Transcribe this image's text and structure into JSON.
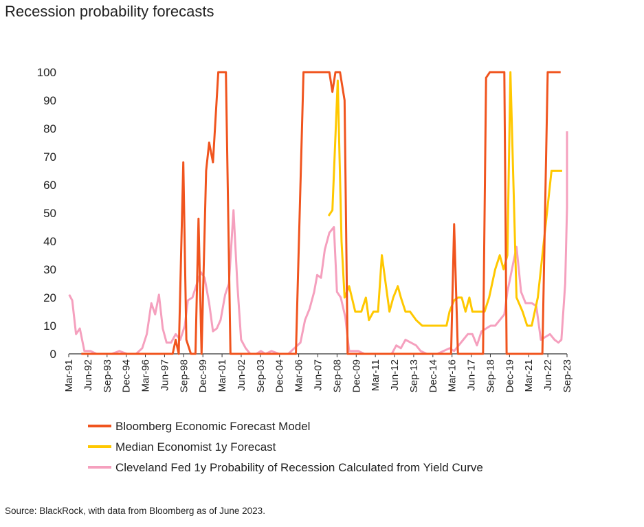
{
  "title": "Recession probability forecasts",
  "source": "Source: BlackRock, with data from Bloomberg as of June 2023.",
  "chart_data": {
    "type": "line",
    "title": "Recession probability forecasts",
    "xlabel": "",
    "ylabel": "",
    "ylim": [
      0,
      100
    ],
    "y_ticks": [
      0,
      10,
      20,
      30,
      40,
      50,
      60,
      70,
      80,
      90,
      100
    ],
    "x_range": [
      1991.17,
      2023.92
    ],
    "x_tick_labels": [
      "Mar-91",
      "Jun-92",
      "Sep-93",
      "Dec-94",
      "Mar-96",
      "Jun-97",
      "Sep-98",
      "Dec-99",
      "Mar-01",
      "Jun-02",
      "Sep-03",
      "Dec-04",
      "Mar-06",
      "Jun-07",
      "Sep-08",
      "Dec-09",
      "Mar-11",
      "Jun-12",
      "Sep-13",
      "Dec-14",
      "Mar-16",
      "Jun-17",
      "Sep-18",
      "Dec-19",
      "Mar-21",
      "Jun-22",
      "Sep-23"
    ],
    "grid": false,
    "legend_position": "bottom",
    "series": [
      {
        "name": "Bloomberg Economic Forecast Model",
        "color": "#f0541e",
        "points": [
          [
            1992.0,
            0
          ],
          [
            1998.0,
            0
          ],
          [
            1998.2,
            5
          ],
          [
            1998.4,
            0
          ],
          [
            1998.7,
            68
          ],
          [
            1998.9,
            5
          ],
          [
            1999.2,
            0
          ],
          [
            1999.5,
            0
          ],
          [
            1999.7,
            48
          ],
          [
            1999.9,
            0
          ],
          [
            2000.2,
            65
          ],
          [
            2000.4,
            75
          ],
          [
            2000.65,
            68
          ],
          [
            2001.0,
            100
          ],
          [
            2001.5,
            100
          ],
          [
            2001.8,
            0
          ],
          [
            2006.1,
            0
          ],
          [
            2006.6,
            100
          ],
          [
            2008.3,
            100
          ],
          [
            2008.5,
            93
          ],
          [
            2008.7,
            100
          ],
          [
            2009.0,
            100
          ],
          [
            2009.3,
            90
          ],
          [
            2009.5,
            0
          ],
          [
            2016.3,
            0
          ],
          [
            2016.5,
            46
          ],
          [
            2016.75,
            0
          ],
          [
            2018.4,
            0
          ],
          [
            2018.6,
            98
          ],
          [
            2018.85,
            100
          ],
          [
            2019.8,
            100
          ],
          [
            2019.95,
            0
          ],
          [
            2022.3,
            0
          ],
          [
            2022.65,
            100
          ],
          [
            2023.5,
            100
          ]
        ]
      },
      {
        "name": "Median Economist 1y Forecast",
        "color": "#ffc800",
        "points": [
          [
            2008.25,
            49
          ],
          [
            2008.5,
            51
          ],
          [
            2008.85,
            97
          ],
          [
            2009.1,
            40
          ],
          [
            2009.3,
            20
          ],
          [
            2009.6,
            24
          ],
          [
            2010.0,
            15
          ],
          [
            2010.4,
            15
          ],
          [
            2010.7,
            20
          ],
          [
            2010.9,
            12
          ],
          [
            2011.2,
            15
          ],
          [
            2011.5,
            15
          ],
          [
            2011.75,
            35
          ],
          [
            2012.0,
            25
          ],
          [
            2012.25,
            15
          ],
          [
            2012.5,
            20
          ],
          [
            2012.8,
            24
          ],
          [
            2013.0,
            20
          ],
          [
            2013.3,
            15
          ],
          [
            2013.6,
            15
          ],
          [
            2014.0,
            12
          ],
          [
            2014.4,
            10
          ],
          [
            2015.0,
            10
          ],
          [
            2015.5,
            10
          ],
          [
            2016.0,
            10
          ],
          [
            2016.2,
            15
          ],
          [
            2016.5,
            19
          ],
          [
            2016.75,
            20
          ],
          [
            2017.0,
            20
          ],
          [
            2017.25,
            15
          ],
          [
            2017.5,
            20
          ],
          [
            2017.7,
            15
          ],
          [
            2018.0,
            15
          ],
          [
            2018.5,
            15
          ],
          [
            2018.8,
            20
          ],
          [
            2019.2,
            30
          ],
          [
            2019.5,
            35
          ],
          [
            2019.75,
            30
          ],
          [
            2020.0,
            35
          ],
          [
            2020.2,
            100
          ],
          [
            2020.4,
            60
          ],
          [
            2020.6,
            20
          ],
          [
            2021.0,
            15
          ],
          [
            2021.3,
            10
          ],
          [
            2021.6,
            10
          ],
          [
            2022.0,
            20
          ],
          [
            2022.4,
            40
          ],
          [
            2022.6,
            50
          ],
          [
            2022.9,
            65
          ],
          [
            2023.6,
            65
          ]
        ]
      },
      {
        "name": "Cleveland Fed 1y Probability of Recession Calculated from Yield Curve",
        "color": "#f5a0be",
        "points": [
          [
            1991.2,
            21
          ],
          [
            1991.4,
            19
          ],
          [
            1991.65,
            7
          ],
          [
            1991.9,
            9
          ],
          [
            1992.2,
            1
          ],
          [
            1992.6,
            1
          ],
          [
            1993.0,
            0
          ],
          [
            1994.0,
            0
          ],
          [
            1994.5,
            1
          ],
          [
            1995.0,
            0
          ],
          [
            1995.6,
            0
          ],
          [
            1996.0,
            2
          ],
          [
            1996.3,
            7
          ],
          [
            1996.6,
            18
          ],
          [
            1996.85,
            14
          ],
          [
            1997.1,
            21
          ],
          [
            1997.35,
            9
          ],
          [
            1997.6,
            4
          ],
          [
            1997.9,
            4
          ],
          [
            1998.2,
            7
          ],
          [
            1998.5,
            5
          ],
          [
            1998.8,
            10
          ],
          [
            1999.0,
            19
          ],
          [
            1999.3,
            20
          ],
          [
            1999.6,
            25
          ],
          [
            1999.85,
            29
          ],
          [
            2000.1,
            27
          ],
          [
            2000.4,
            18
          ],
          [
            2000.65,
            8
          ],
          [
            2000.9,
            9
          ],
          [
            2001.15,
            12
          ],
          [
            2001.45,
            21
          ],
          [
            2001.7,
            25
          ],
          [
            2002.0,
            51
          ],
          [
            2002.25,
            25
          ],
          [
            2002.5,
            5
          ],
          [
            2002.8,
            2
          ],
          [
            2003.1,
            0
          ],
          [
            2003.5,
            0
          ],
          [
            2003.8,
            1
          ],
          [
            2004.1,
            0
          ],
          [
            2004.5,
            1
          ],
          [
            2005.0,
            0
          ],
          [
            2005.6,
            0
          ],
          [
            2006.0,
            2
          ],
          [
            2006.4,
            4
          ],
          [
            2006.7,
            12
          ],
          [
            2007.0,
            16
          ],
          [
            2007.3,
            22
          ],
          [
            2007.5,
            28
          ],
          [
            2007.75,
            27
          ],
          [
            2008.0,
            37
          ],
          [
            2008.3,
            43
          ],
          [
            2008.6,
            45
          ],
          [
            2008.8,
            22
          ],
          [
            2009.05,
            20
          ],
          [
            2009.35,
            13
          ],
          [
            2009.6,
            1
          ],
          [
            2009.9,
            1
          ],
          [
            2010.2,
            1
          ],
          [
            2010.6,
            0
          ],
          [
            2011.0,
            0
          ],
          [
            2011.5,
            0
          ],
          [
            2012.0,
            0
          ],
          [
            2012.4,
            0
          ],
          [
            2012.7,
            3
          ],
          [
            2013.0,
            2
          ],
          [
            2013.3,
            5
          ],
          [
            2013.65,
            4
          ],
          [
            2014.0,
            3
          ],
          [
            2014.3,
            1
          ],
          [
            2014.7,
            0
          ],
          [
            2015.0,
            0
          ],
          [
            2015.4,
            0
          ],
          [
            2015.8,
            1
          ],
          [
            2016.2,
            2
          ],
          [
            2016.5,
            1
          ],
          [
            2016.8,
            3
          ],
          [
            2017.1,
            5
          ],
          [
            2017.4,
            7
          ],
          [
            2017.7,
            7
          ],
          [
            2018.0,
            3
          ],
          [
            2018.3,
            8
          ],
          [
            2018.6,
            9
          ],
          [
            2018.9,
            10
          ],
          [
            2019.2,
            10
          ],
          [
            2019.5,
            12
          ],
          [
            2019.8,
            14
          ],
          [
            2020.0,
            22
          ],
          [
            2020.3,
            30
          ],
          [
            2020.6,
            38
          ],
          [
            2020.9,
            22
          ],
          [
            2021.2,
            18
          ],
          [
            2021.6,
            18
          ],
          [
            2021.9,
            17
          ],
          [
            2022.2,
            5
          ],
          [
            2022.5,
            6
          ],
          [
            2022.8,
            7
          ],
          [
            2023.1,
            5
          ],
          [
            2023.35,
            4
          ],
          [
            2023.55,
            5
          ],
          [
            2023.8,
            25
          ],
          [
            2024.1,
            52
          ],
          [
            2024.35,
            65
          ],
          [
            2024.6,
            79
          ]
        ]
      }
    ]
  }
}
